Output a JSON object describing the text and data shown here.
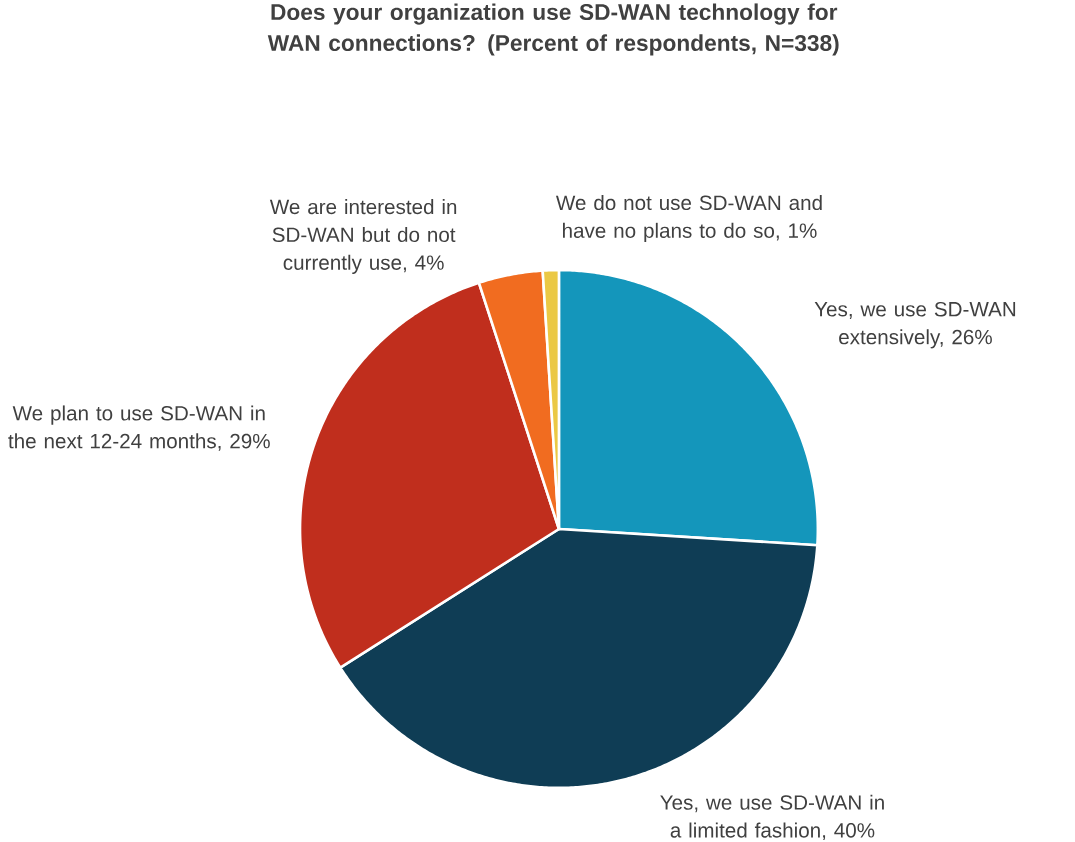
{
  "chart_data": {
    "type": "pie",
    "title": "Does your organization use SD-WAN technology for WAN connections? (Percent of respondents, N=338)",
    "categories": [
      "Yes, we use SD-WAN extensively, 26%",
      "Yes, we use SD-WAN in a limited fashion, 40%",
      "We plan to use SD-WAN in the next 12-24 months, 29%",
      "We are interested in SD-WAN but do not currently use, 4%",
      "We do not use SD-WAN and have no plans to do so, 1%"
    ],
    "values": [
      26,
      40,
      29,
      4,
      1
    ],
    "colors": [
      "#1496bb",
      "#0f3d55",
      "#c02e1d",
      "#f16c20",
      "#ebc844"
    ]
  }
}
